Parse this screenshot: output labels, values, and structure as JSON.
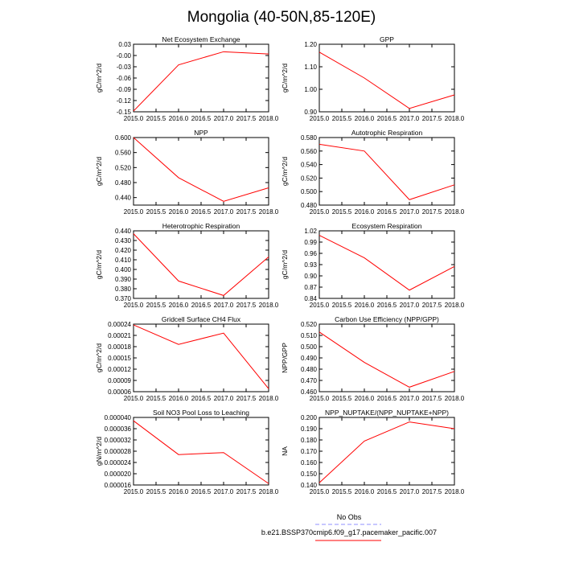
{
  "figure": {
    "title": "Mongolia (40-50N,85-120E)"
  },
  "colors": {
    "model_line": "#ff0000",
    "obs_line": "#8f8fff",
    "axis": "#000000"
  },
  "legend": {
    "obs_label": "No Obs",
    "model_label": "b.e21.BSSP370cmip6.f09_g17.pacemaker_pacific.007"
  },
  "chart_data": [
    {
      "type": "line",
      "title": "Net Ecosystem Exchange",
      "ylabel": "gC/m^2/d",
      "x": [
        2015,
        2016,
        2017,
        2018
      ],
      "values": [
        -0.148,
        -0.025,
        0.01,
        0.004
      ],
      "xlim": [
        2015,
        2018
      ],
      "ylim": [
        -0.15,
        0.03
      ],
      "xticks": [
        "2015.0",
        "2015.5",
        "2016.0",
        "2016.5",
        "2017.0",
        "2017.5",
        "2018.0"
      ],
      "yticks": [
        0.03,
        0.0,
        -0.03,
        -0.06,
        -0.09,
        -0.12,
        -0.15
      ],
      "yticklabels": [
        "0.03",
        "-0.00",
        "-0.03",
        "-0.06",
        "-0.09",
        "-0.12",
        "-0.15"
      ]
    },
    {
      "type": "line",
      "title": "GPP",
      "ylabel": "gC/m^2/d",
      "x": [
        2015,
        2016,
        2017,
        2018
      ],
      "values": [
        1.165,
        1.05,
        0.915,
        0.975
      ],
      "xlim": [
        2015,
        2018
      ],
      "ylim": [
        0.9,
        1.2
      ],
      "xticks": [
        "2015.0",
        "2015.5",
        "2016.0",
        "2016.5",
        "2017.0",
        "2017.5",
        "2018.0"
      ],
      "yticks": [
        1.2,
        1.1,
        1.0,
        0.9
      ],
      "yticklabels": [
        "1.20",
        "1.10",
        "1.00",
        "0.90"
      ]
    },
    {
      "type": "line",
      "title": "NPP",
      "ylabel": "gC/m^2/d",
      "x": [
        2015,
        2016,
        2017,
        2018
      ],
      "values": [
        0.6,
        0.493,
        0.43,
        0.466
      ],
      "xlim": [
        2015,
        2018
      ],
      "ylim": [
        0.42,
        0.6
      ],
      "xticks": [
        "2015.0",
        "2015.5",
        "2016.0",
        "2016.5",
        "2017.0",
        "2017.5",
        "2018.0"
      ],
      "yticks": [
        0.6,
        0.56,
        0.52,
        0.48,
        0.44
      ],
      "yticklabels": [
        "0.600",
        "0.560",
        "0.520",
        "0.480",
        "0.440"
      ]
    },
    {
      "type": "line",
      "title": "Autotrophic Respiration",
      "ylabel": "gC/m^2/d",
      "x": [
        2015,
        2016,
        2017,
        2018
      ],
      "values": [
        0.57,
        0.56,
        0.488,
        0.51
      ],
      "xlim": [
        2015,
        2018
      ],
      "ylim": [
        0.48,
        0.58
      ],
      "xticks": [
        "2015.0",
        "2015.5",
        "2016.0",
        "2016.5",
        "2017.0",
        "2017.5",
        "2018.0"
      ],
      "yticks": [
        0.58,
        0.56,
        0.54,
        0.52,
        0.5,
        0.48
      ],
      "yticklabels": [
        "0.580",
        "0.560",
        "0.540",
        "0.520",
        "0.500",
        "0.480"
      ]
    },
    {
      "type": "line",
      "title": "Heterotrophic Respiration",
      "ylabel": "gC/m^2/d",
      "x": [
        2015,
        2016,
        2017,
        2018
      ],
      "values": [
        0.437,
        0.388,
        0.373,
        0.413
      ],
      "xlim": [
        2015,
        2018
      ],
      "ylim": [
        0.37,
        0.44
      ],
      "xticks": [
        "2015.0",
        "2015.5",
        "2016.0",
        "2016.5",
        "2017.0",
        "2017.5",
        "2018.0"
      ],
      "yticks": [
        0.44,
        0.43,
        0.42,
        0.41,
        0.4,
        0.39,
        0.38,
        0.37
      ],
      "yticklabels": [
        "0.440",
        "0.430",
        "0.420",
        "0.410",
        "0.400",
        "0.390",
        "0.380",
        "0.370"
      ]
    },
    {
      "type": "line",
      "title": "Ecosystem Respiration",
      "ylabel": "gC/m^2/d",
      "x": [
        2015,
        2016,
        2017,
        2018
      ],
      "values": [
        1.008,
        0.948,
        0.862,
        0.925
      ],
      "xlim": [
        2015,
        2018
      ],
      "ylim": [
        0.84,
        1.02
      ],
      "xticks": [
        "2015.0",
        "2015.5",
        "2016.0",
        "2016.5",
        "2017.0",
        "2017.5",
        "2018.0"
      ],
      "yticks": [
        1.02,
        0.99,
        0.96,
        0.93,
        0.9,
        0.87,
        0.84
      ],
      "yticklabels": [
        "1.02",
        "0.99",
        "0.96",
        "0.93",
        "0.90",
        "0.87",
        "0.84"
      ]
    },
    {
      "type": "line",
      "title": "Gridcell Surface CH4 Flux",
      "ylabel": "gC/m^2/d",
      "x": [
        2015,
        2016,
        2017,
        2018
      ],
      "values": [
        0.000238,
        0.000186,
        0.000216,
        6.8e-05
      ],
      "xlim": [
        2015,
        2018
      ],
      "ylim": [
        6e-05,
        0.00024
      ],
      "xticks": [
        "2015.0",
        "2015.5",
        "2016.0",
        "2016.5",
        "2017.0",
        "2017.5",
        "2018.0"
      ],
      "yticks": [
        0.00024,
        0.00021,
        0.00018,
        0.00015,
        0.00012,
        9e-05,
        6e-05
      ],
      "yticklabels": [
        "0.00024",
        "0.00021",
        "0.00018",
        "0.00015",
        "0.00012",
        "0.00009",
        "0.00006"
      ]
    },
    {
      "type": "line",
      "title": "Carbon Use Efficiency (NPP/GPP)",
      "ylabel": "NPP/GPP",
      "x": [
        2015,
        2016,
        2017,
        2018
      ],
      "values": [
        0.513,
        0.486,
        0.464,
        0.478
      ],
      "xlim": [
        2015,
        2018
      ],
      "ylim": [
        0.46,
        0.52
      ],
      "xticks": [
        "2015.0",
        "2015.5",
        "2016.0",
        "2016.5",
        "2017.0",
        "2017.5",
        "2018.0"
      ],
      "yticks": [
        0.52,
        0.51,
        0.5,
        0.49,
        0.48,
        0.47,
        0.46
      ],
      "yticklabels": [
        "0.520",
        "0.510",
        "0.500",
        "0.490",
        "0.480",
        "0.470",
        "0.460"
      ]
    },
    {
      "type": "line",
      "title": "Soil NO3 Pool Loss to Leaching",
      "ylabel": "gN/m^2/d",
      "x": [
        2015,
        2016,
        2017,
        2018
      ],
      "values": [
        3.88e-05,
        2.68e-05,
        2.75e-05,
        1.65e-05
      ],
      "xlim": [
        2015,
        2018
      ],
      "ylim": [
        1.6e-05,
        4e-05
      ],
      "xticks": [
        "2015.0",
        "2015.5",
        "2016.0",
        "2016.5",
        "2017.0",
        "2017.5",
        "2018.0"
      ],
      "yticks": [
        4e-05,
        3.6e-05,
        3.2e-05,
        2.8e-05,
        2.4e-05,
        2e-05,
        1.6e-05
      ],
      "yticklabels": [
        "0.000040",
        "0.000036",
        "0.000032",
        "0.000028",
        "0.000024",
        "0.000020",
        "0.000016"
      ]
    },
    {
      "type": "line",
      "title": "NPP_NUPTAKE/(NPP_NUPTAKE+NPP)",
      "ylabel": "NA",
      "x": [
        2015,
        2016,
        2017,
        2018
      ],
      "values": [
        0.142,
        0.179,
        0.196,
        0.19
      ],
      "xlim": [
        2015,
        2018
      ],
      "ylim": [
        0.14,
        0.2
      ],
      "xticks": [
        "2015.0",
        "2015.5",
        "2016.0",
        "2016.5",
        "2017.0",
        "2017.5",
        "2018.0"
      ],
      "yticks": [
        0.2,
        0.19,
        0.18,
        0.17,
        0.16,
        0.15,
        0.14
      ],
      "yticklabels": [
        "0.200",
        "0.190",
        "0.180",
        "0.170",
        "0.160",
        "0.150",
        "0.140"
      ]
    }
  ]
}
